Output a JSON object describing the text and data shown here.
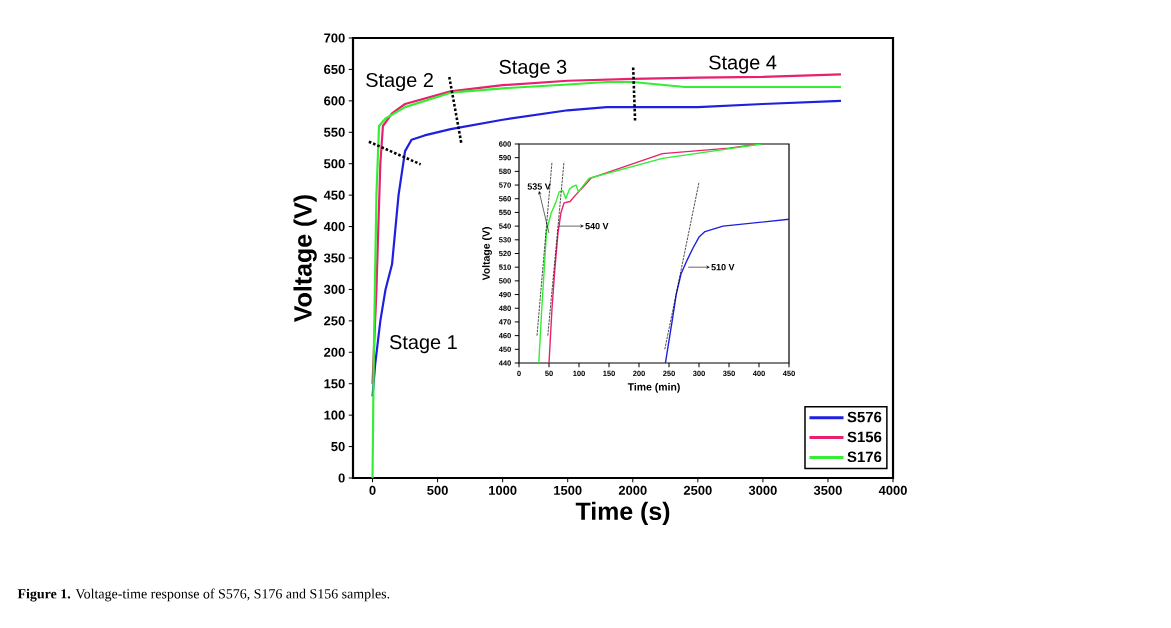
{
  "chart_data": [
    {
      "type": "line",
      "xlabel": "Time (s)",
      "ylabel": "Voltage (V)",
      "xlim": [
        -150,
        4000
      ],
      "ylim": [
        0,
        700
      ],
      "xticks": [
        0,
        500,
        1000,
        1500,
        2000,
        2500,
        3000,
        3500,
        4000
      ],
      "yticks": [
        0,
        50,
        100,
        150,
        200,
        250,
        300,
        350,
        400,
        450,
        500,
        550,
        600,
        650,
        700
      ],
      "legend": "bottom right",
      "series": [
        {
          "name": "S576",
          "color": "#1f1fe0",
          "x": [
            0,
            20,
            60,
            100,
            150,
            200,
            250,
            300,
            400,
            600,
            1000,
            1500,
            1800,
            2000,
            2500,
            3000,
            3600
          ],
          "values": [
            130,
            180,
            250,
            300,
            340,
            450,
            520,
            538,
            545,
            555,
            570,
            585,
            590,
            590,
            590,
            595,
            600
          ]
        },
        {
          "name": "S156",
          "color": "#e8206e",
          "x": [
            0,
            30,
            60,
            80,
            150,
            250,
            600,
            1000,
            1500,
            2000,
            2500,
            3000,
            3600
          ],
          "values": [
            150,
            300,
            500,
            560,
            580,
            595,
            615,
            625,
            632,
            635,
            637,
            638,
            642
          ]
        },
        {
          "name": "S176",
          "color": "#33ee33",
          "x": [
            0,
            10,
            30,
            50,
            100,
            250,
            600,
            1000,
            1500,
            1800,
            2000,
            2200,
            2400,
            3600
          ],
          "values": [
            0,
            200,
            450,
            560,
            572,
            590,
            613,
            620,
            626,
            630,
            630,
            626,
            622,
            622
          ]
        },
        {
          "type": "line",
          "line_style": "dotted",
          "color": "#000000",
          "x": [
            -28,
            370
          ],
          "values": [
            535,
            499
          ]
        },
        {
          "type": "line",
          "line_style": "dotted",
          "color": "#000000",
          "x": [
            590,
            682
          ],
          "values": [
            638,
            533
          ]
        },
        {
          "type": "line",
          "line_style": "dotted",
          "color": "#000000",
          "x": [
            2003,
            2018
          ],
          "values": [
            653,
            567
          ]
        }
      ],
      "annotations": [
        "Stage 1",
        "Stage 2",
        "Stage 3",
        "Stage 4",
        "**Figure 1.** Voltage-time response of S576, S176 and S156 samples."
      ]
    },
    {
      "type": "line",
      "xlabel": "Time (min)",
      "ylabel": "Voltage (V)",
      "xlim": [
        0,
        450
      ],
      "ylim": [
        440,
        600
      ],
      "xticks": [
        0,
        50,
        100,
        150,
        200,
        250,
        300,
        350,
        400,
        450
      ],
      "yticks": [
        440,
        450,
        460,
        470,
        480,
        490,
        500,
        510,
        520,
        530,
        540,
        550,
        560,
        570,
        580,
        590,
        600
      ],
      "series": [
        {
          "color": "#1f1fe0",
          "x": [
            244,
            255,
            262,
            270,
            280,
            290,
            300,
            310,
            340,
            450
          ],
          "values": [
            440,
            470,
            490,
            505,
            515,
            524,
            532,
            536,
            540,
            545
          ]
        },
        {
          "color": "#e8206e",
          "x": [
            50,
            55,
            60,
            65,
            70,
            75,
            85,
            95,
            110,
            120,
            239,
            350,
            400
          ],
          "values": [
            440,
            480,
            510,
            535,
            550,
            557,
            558,
            563,
            570,
            575,
            593,
            597,
            600
          ]
        },
        {
          "color": "#33ee33",
          "x": [
            33,
            38,
            46,
            54,
            61,
            67,
            73,
            78,
            84,
            90,
            95,
            99,
            106,
            117,
            239,
            404
          ],
          "values": [
            440,
            480,
            537,
            550,
            557,
            565,
            566,
            560,
            567,
            569,
            570,
            565,
            569,
            575,
            589.5,
            600
          ]
        },
        {
          "type": "line",
          "line_style": "dashed",
          "color": "#000000",
          "x": [
            30,
            55
          ],
          "values": [
            460,
            587
          ]
        },
        {
          "type": "line",
          "line_style": "dashed",
          "color": "#000000",
          "x": [
            48,
            75
          ],
          "values": [
            460,
            587
          ]
        },
        {
          "type": "line",
          "line_style": "dashed",
          "color": "#000000",
          "x": [
            243,
            300
          ],
          "values": [
            450,
            572
          ]
        }
      ],
      "annotations": [
        {
          "text": "535 V",
          "x": 50,
          "y": 535
        },
        "540 V",
        "510 V"
      ]
    }
  ]
}
